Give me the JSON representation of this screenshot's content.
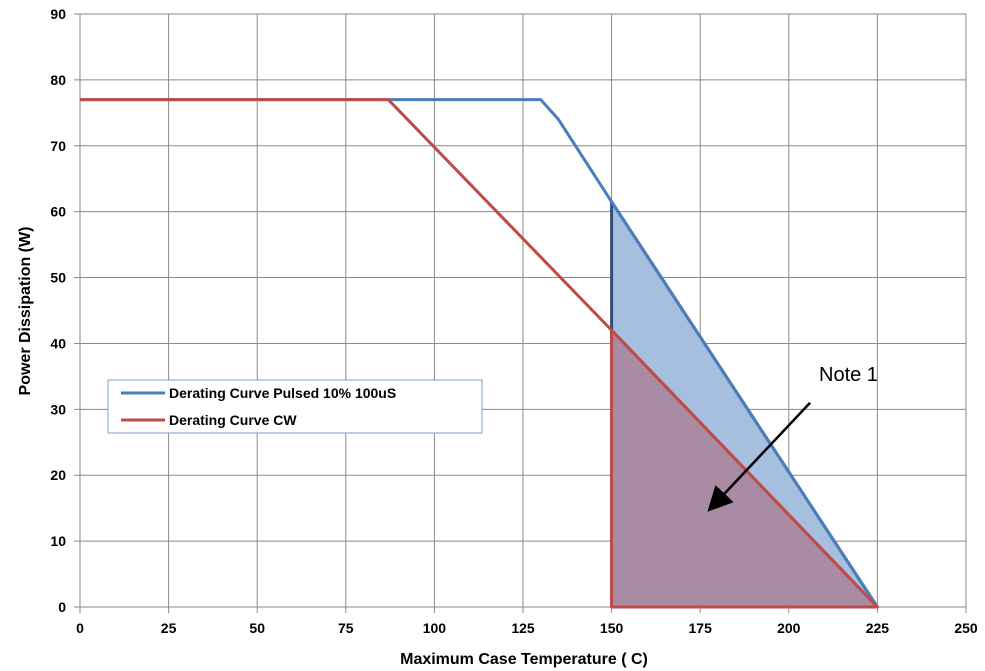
{
  "chart_data": {
    "type": "line",
    "xlabel": "Maximum Case Temperature ( C)",
    "ylabel": "Power Dissipation (W)",
    "xlim": [
      0,
      250
    ],
    "ylim": [
      0,
      90
    ],
    "xticks": [
      0,
      25,
      50,
      75,
      100,
      125,
      150,
      175,
      200,
      225,
      250
    ],
    "yticks": [
      0,
      10,
      20,
      30,
      40,
      50,
      60,
      70,
      80,
      90
    ],
    "grid": true,
    "legend_position": "left",
    "series": [
      {
        "name": "Derating Curve Pulsed 10% 100uS",
        "color": "#4A7EBB",
        "x": [
          0,
          130,
          135,
          150,
          225
        ],
        "y": [
          77,
          77,
          74,
          61.5,
          0
        ]
      },
      {
        "name": "Derating Curve CW",
        "color": "#BE4B48",
        "x": [
          0,
          87,
          150,
          225
        ],
        "y": [
          77,
          77,
          42,
          0
        ]
      }
    ],
    "shaded_regions": [
      {
        "color": "#A7BFDE",
        "stroke": "#2F4F7F",
        "x": [
          150,
          150,
          225,
          150
        ],
        "y": [
          0,
          61.5,
          0,
          0
        ]
      },
      {
        "color": "#A98CA4",
        "stroke": "#BE4B48",
        "x": [
          150,
          150,
          225,
          150
        ],
        "y": [
          0,
          42,
          0,
          0
        ]
      }
    ],
    "annotations": [
      {
        "text": "Note 1",
        "arrow_from": [
          206,
          31
        ],
        "arrow_to": [
          178,
          15
        ]
      }
    ]
  }
}
